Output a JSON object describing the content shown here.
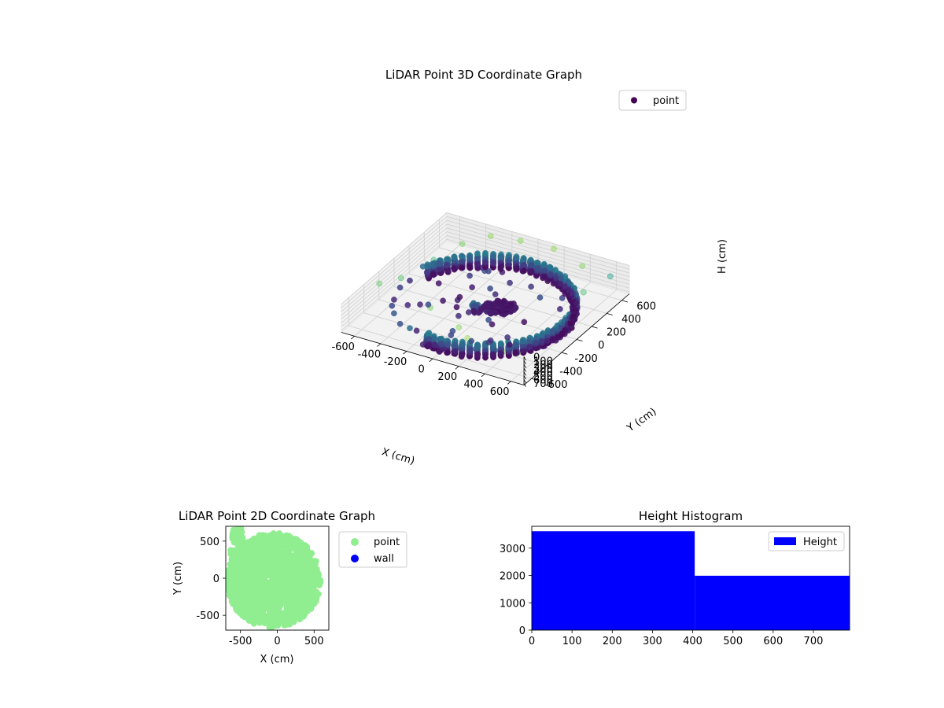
{
  "chart_data": [
    {
      "type": "scatter",
      "title": "LiDAR Point 3D Coordinate Graph",
      "xlabel": "X (cm)",
      "ylabel": "Y (cm)",
      "zlabel": "H (cm)",
      "xlim": [
        -700,
        700
      ],
      "ylim": [
        -700,
        700
      ],
      "zlim": [
        0,
        750
      ],
      "z_inverted": true,
      "xticks": [
        -600,
        -400,
        -200,
        0,
        200,
        400,
        600
      ],
      "yticks": [
        -600,
        -400,
        -200,
        0,
        200,
        400,
        600
      ],
      "zticks": [
        0,
        100,
        200,
        300,
        400,
        500,
        600,
        700
      ],
      "legend": {
        "position": "top-right",
        "entries": [
          "point"
        ]
      },
      "colormap": "viridis",
      "series": [
        {
          "name": "point",
          "wall": {
            "shape": "partial cylinder",
            "radius": 600,
            "arc_deg": [
              -100,
              160
            ],
            "h_range": [
              380,
              730
            ]
          },
          "inner_cluster": [
            {
              "x": 60,
              "y": 120,
              "h": 720
            },
            {
              "x": 20,
              "y": 40,
              "h": 700
            },
            {
              "x": 100,
              "y": 80,
              "h": 705
            }
          ],
          "sparse_points": [
            {
              "x": 640,
              "y": -650,
              "h": 20
            },
            {
              "x": 560,
              "y": -690,
              "h": 30
            },
            {
              "x": 250,
              "y": -670,
              "h": 10
            },
            {
              "x": 120,
              "y": -560,
              "h": 40
            },
            {
              "x": -180,
              "y": -420,
              "h": 60
            },
            {
              "x": -640,
              "y": -300,
              "h": 90
            },
            {
              "x": -560,
              "y": -150,
              "h": 120
            },
            {
              "x": -500,
              "y": 180,
              "h": 150
            },
            {
              "x": -420,
              "y": 420,
              "h": 60
            },
            {
              "x": -300,
              "y": 590,
              "h": 30
            },
            {
              "x": -100,
              "y": 640,
              "h": 40
            },
            {
              "x": 150,
              "y": 650,
              "h": 20
            },
            {
              "x": 420,
              "y": 560,
              "h": 50
            },
            {
              "x": 580,
              "y": 300,
              "h": 140
            },
            {
              "x": 640,
              "y": 80,
              "h": 200
            },
            {
              "x": 600,
              "y": 620,
              "h": 250
            }
          ]
        }
      ]
    },
    {
      "type": "scatter",
      "title": "LiDAR Point 2D Coordinate Graph",
      "xlabel": "X (cm)",
      "ylabel": "Y (cm)",
      "xlim": [
        -700,
        700
      ],
      "ylim": [
        -700,
        700
      ],
      "xticks": [
        -500,
        0,
        500
      ],
      "yticks": [
        -500,
        0,
        500
      ],
      "legend": {
        "position": "outside-right",
        "entries": [
          "point",
          "wall"
        ]
      },
      "series": [
        {
          "name": "point",
          "color": "#90ee90",
          "shape": "disk",
          "center": [
            -50,
            -30
          ],
          "radius": 640
        },
        {
          "name": "wall",
          "color": "#0000ff",
          "points": []
        }
      ]
    },
    {
      "type": "bar",
      "title": "Height Histogram",
      "xlim": [
        0,
        790
      ],
      "ylim": [
        0,
        3800
      ],
      "xticks": [
        0,
        100,
        200,
        300,
        400,
        500,
        600,
        700
      ],
      "yticks": [
        0,
        1000,
        2000,
        3000
      ],
      "legend": {
        "position": "top-right",
        "entries": [
          "Height"
        ]
      },
      "series": [
        {
          "name": "Height",
          "color": "#0000ff",
          "bins": [
            {
              "from": 0,
              "to": 405,
              "count": 3620
            },
            {
              "from": 405,
              "to": 790,
              "count": 1990
            }
          ]
        }
      ]
    }
  ]
}
